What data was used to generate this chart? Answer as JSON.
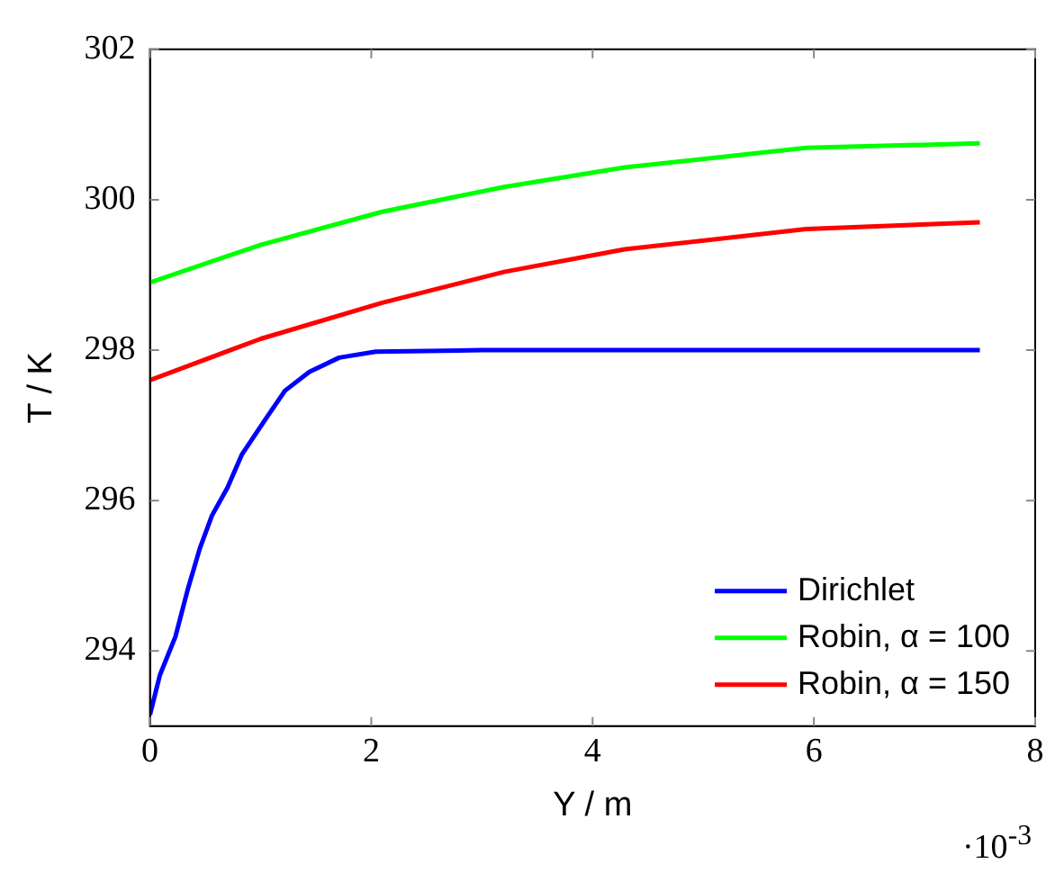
{
  "chart_data": {
    "type": "line",
    "xlabel": "Y / m",
    "ylabel": "T / K",
    "xlim": [
      0,
      8
    ],
    "xticks": [
      0,
      2,
      4,
      6,
      8
    ],
    "ylim": [
      293,
      302
    ],
    "yticks": [
      294,
      296,
      298,
      300,
      302
    ],
    "grid": false,
    "legend": "bottom right",
    "marker": "none",
    "line_style": "solid",
    "annotations": [
      "·10$^{-3}$"
    ],
    "series": [
      {
        "name": "Dirichlet",
        "color": "#0000ff",
        "x": [
          0,
          0.09,
          0.23,
          0.34,
          0.45,
          0.56,
          0.7,
          0.83,
          1.03,
          1.22,
          1.44,
          1.71,
          2.04,
          3,
          7.5
        ],
        "values": [
          293.15,
          293.68,
          294.19,
          294.81,
          295.36,
          295.8,
          296.17,
          296.61,
          297.05,
          297.46,
          297.71,
          297.9,
          297.98,
          298.0,
          298.0
        ]
      },
      {
        "name": "Robin, α = 100",
        "color": "#00ff00",
        "x": [
          0,
          1.0,
          2.1,
          3.2,
          4.29,
          5.93,
          7.5
        ],
        "values": [
          298.9,
          299.4,
          299.84,
          300.17,
          300.43,
          300.69,
          300.75
        ]
      },
      {
        "name": "Robin, α = 150",
        "color": "#ff0000",
        "x": [
          0,
          1.0,
          2.1,
          3.2,
          4.29,
          5.93,
          7.5
        ],
        "values": [
          297.6,
          298.15,
          298.63,
          299.04,
          299.34,
          299.61,
          299.7
        ]
      }
    ]
  }
}
